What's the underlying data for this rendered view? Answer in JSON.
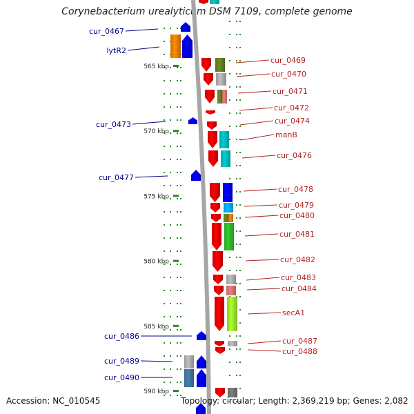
{
  "title": "Corynebacterium urealyticum DSM 7109, complete genome",
  "accession_text": "Accession: NC_010545",
  "summary_text": "Topology: circular; Length: 2,369,219 bp; Genes: 2,082",
  "colors": {
    "red": "#ff0000",
    "blue": "#0000ff",
    "orange": "#ff8c00",
    "olive": "#6b8e23",
    "silver": "#c0c0c0",
    "pink": "#f08080",
    "cyan": "#00ced1",
    "skyblue": "#00bfff",
    "green": "#32cd32",
    "lime": "#adff2f",
    "gray": "#808080",
    "steelblue": "#4682b4",
    "tick": "#228b22",
    "backbone": "#a6a6a6",
    "left_label": "#00008b",
    "right_label": "#b22222"
  },
  "scale_labels": [
    {
      "kbp": 565,
      "text": "565 kbp"
    },
    {
      "kbp": 570,
      "text": "570 kbp"
    },
    {
      "kbp": 575,
      "text": "575 kbp"
    },
    {
      "kbp": 580,
      "text": "580 kbp"
    },
    {
      "kbp": 585,
      "text": "585 kbp"
    },
    {
      "kbp": 590,
      "text": "590 kbp"
    }
  ],
  "left_labels": [
    "cur_0467",
    "lytR2",
    "cur_0473",
    "cur_0477",
    "cur_0486",
    "cur_0489",
    "cur_0490"
  ],
  "right_labels": [
    "cur_0469",
    "cur_0470",
    "cur_0471",
    "cur_0472",
    "cur_0474",
    "manB",
    "cur_0476",
    "cur_0478",
    "cur_0479",
    "cur_0480",
    "cur_0481",
    "cur_0482",
    "cur_0483",
    "cur_0484",
    "secA1",
    "cur_0487",
    "cur_0488"
  ]
}
